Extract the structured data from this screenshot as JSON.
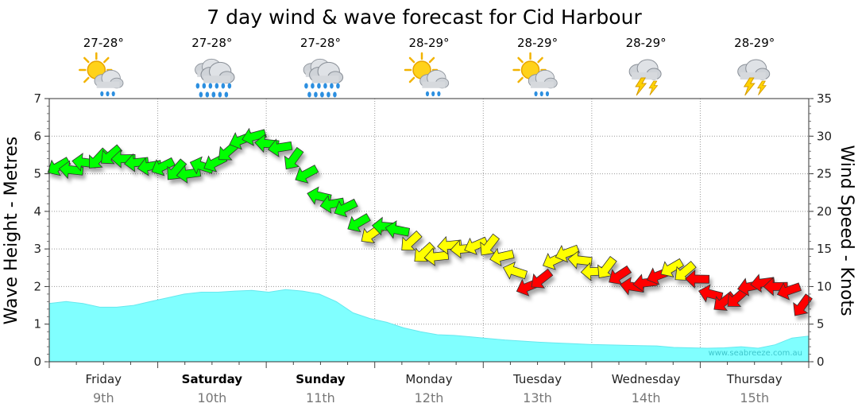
{
  "chart_data": {
    "type": "area",
    "title": "7 day wind & wave forecast for Cid Harbour",
    "ylabel_left": "Wave Height - Metres",
    "ylabel_right": "Wind Speed - Knots",
    "ylim_left": [
      0,
      7
    ],
    "ylim_right": [
      0,
      35
    ],
    "yticks_left": [
      "0",
      "1",
      "2",
      "3",
      "4",
      "5",
      "6",
      "7"
    ],
    "yticks_right": [
      "0",
      "5",
      "10",
      "15",
      "20",
      "25",
      "30",
      "35"
    ],
    "days": [
      {
        "name": "Friday",
        "date": "9th",
        "temp": "27-28°",
        "icon": "sun-cloud-rain-icon",
        "bold": false
      },
      {
        "name": "Saturday",
        "date": "10th",
        "temp": "27-28°",
        "icon": "heavy-rain-icon",
        "bold": true
      },
      {
        "name": "Sunday",
        "date": "11th",
        "temp": "27-28°",
        "icon": "heavy-rain-icon",
        "bold": true
      },
      {
        "name": "Monday",
        "date": "12th",
        "temp": "28-29°",
        "icon": "sun-cloud-rain-icon",
        "bold": false
      },
      {
        "name": "Tuesday",
        "date": "13th",
        "temp": "28-29°",
        "icon": "sun-cloud-rain-icon",
        "bold": false
      },
      {
        "name": "Wednesday",
        "date": "14th",
        "temp": "28-29°",
        "icon": "thunderstorm-icon",
        "bold": false
      },
      {
        "name": "Thursday",
        "date": "15th",
        "temp": "28-29°",
        "icon": "thunderstorm-icon",
        "bold": false
      }
    ],
    "wave_height_m": [
      1.55,
      1.6,
      1.55,
      1.45,
      1.45,
      1.5,
      1.6,
      1.7,
      1.8,
      1.85,
      1.85,
      1.88,
      1.9,
      1.85,
      1.92,
      1.88,
      1.8,
      1.6,
      1.3,
      1.15,
      1.05,
      0.9,
      0.8,
      0.72,
      0.7,
      0.66,
      0.62,
      0.58,
      0.55,
      0.52,
      0.5,
      0.48,
      0.46,
      0.45,
      0.44,
      0.43,
      0.42,
      0.38,
      0.37,
      0.36,
      0.37,
      0.4,
      0.36,
      0.45,
      0.63,
      0.68
    ],
    "wind_knots": [
      26,
      25.5,
      26.5,
      27,
      27.5,
      27,
      26.5,
      26,
      26,
      25.5,
      25,
      26,
      26.5,
      28,
      29.5,
      30,
      29,
      28.5,
      27,
      25,
      22,
      21,
      20.5,
      18.5,
      17,
      18,
      17.5,
      16,
      14.5,
      14,
      15.5,
      15,
      15.5,
      15.5,
      14,
      12,
      10,
      11,
      13.5,
      14.5,
      13.5,
      12,
      12.5,
      11.5,
      10,
      10.5,
      11.5,
      12.5,
      12,
      11,
      9,
      8,
      8.5,
      10,
      10.5,
      10,
      9.5,
      7.5
    ],
    "wind_colors": {
      "high": "#00ff00",
      "moderate": "#ffff00",
      "low": "#ff0000"
    },
    "wave_color": "#80ffff",
    "credit": "www.seabreeze.com.au"
  }
}
